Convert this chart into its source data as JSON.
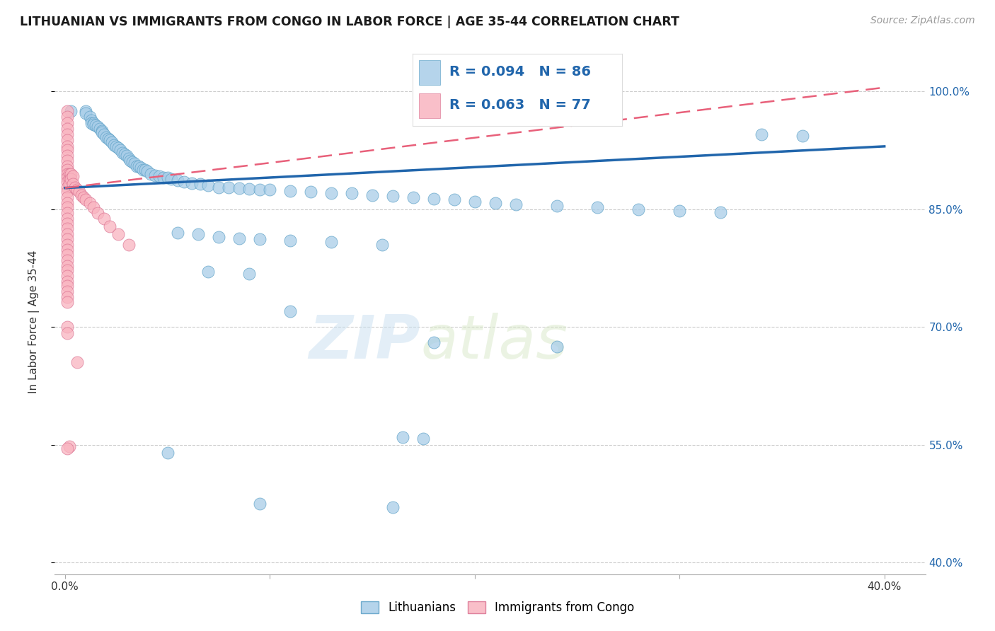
{
  "title": "LITHUANIAN VS IMMIGRANTS FROM CONGO IN LABOR FORCE | AGE 35-44 CORRELATION CHART",
  "source": "Source: ZipAtlas.com",
  "ylabel": "In Labor Force | Age 35-44",
  "xlim": [
    -0.005,
    0.42
  ],
  "ylim": [
    0.385,
    1.028
  ],
  "ytick_vals": [
    0.4,
    0.55,
    0.7,
    0.85,
    1.0
  ],
  "ytick_labels": [
    "40.0%",
    "55.0%",
    "70.0%",
    "85.0%",
    "100.0%"
  ],
  "xtick_vals": [
    0.0,
    0.1,
    0.2,
    0.3,
    0.4
  ],
  "xtick_labels": [
    "0.0%",
    "",
    "",
    "",
    "40.0%"
  ],
  "color_blue": "#a8cde8",
  "color_pink": "#f9b4c0",
  "color_blue_line": "#2166ac",
  "color_pink_line": "#e8607a",
  "legend_text_color": "#2166ac",
  "watermark_color": "#c8dff0",
  "legend_label_blue": "Lithuanians",
  "legend_label_pink": "Immigrants from Congo",
  "blue_trend_x": [
    0.0,
    0.4
  ],
  "blue_trend_y": [
    0.877,
    0.93
  ],
  "pink_trend_x": [
    0.0,
    0.4
  ],
  "pink_trend_y": [
    0.877,
    1.005
  ],
  "blue_scatter": [
    [
      0.003,
      0.975
    ],
    [
      0.01,
      0.975
    ],
    [
      0.01,
      0.972
    ],
    [
      0.012,
      0.968
    ],
    [
      0.013,
      0.963
    ],
    [
      0.013,
      0.96
    ],
    [
      0.014,
      0.96
    ],
    [
      0.014,
      0.958
    ],
    [
      0.015,
      0.957
    ],
    [
      0.016,
      0.955
    ],
    [
      0.017,
      0.952
    ],
    [
      0.018,
      0.95
    ],
    [
      0.018,
      0.948
    ],
    [
      0.019,
      0.945
    ],
    [
      0.02,
      0.942
    ],
    [
      0.021,
      0.94
    ],
    [
      0.022,
      0.938
    ],
    [
      0.023,
      0.935
    ],
    [
      0.024,
      0.932
    ],
    [
      0.025,
      0.93
    ],
    [
      0.026,
      0.928
    ],
    [
      0.027,
      0.925
    ],
    [
      0.028,
      0.922
    ],
    [
      0.029,
      0.92
    ],
    [
      0.03,
      0.918
    ],
    [
      0.031,
      0.915
    ],
    [
      0.032,
      0.912
    ],
    [
      0.033,
      0.91
    ],
    [
      0.034,
      0.908
    ],
    [
      0.035,
      0.905
    ],
    [
      0.036,
      0.905
    ],
    [
      0.037,
      0.903
    ],
    [
      0.038,
      0.9
    ],
    [
      0.039,
      0.9
    ],
    [
      0.04,
      0.898
    ],
    [
      0.042,
      0.895
    ],
    [
      0.044,
      0.893
    ],
    [
      0.046,
      0.892
    ],
    [
      0.048,
      0.89
    ],
    [
      0.05,
      0.89
    ],
    [
      0.052,
      0.888
    ],
    [
      0.055,
      0.887
    ],
    [
      0.058,
      0.885
    ],
    [
      0.062,
      0.883
    ],
    [
      0.066,
      0.882
    ],
    [
      0.07,
      0.88
    ],
    [
      0.075,
      0.878
    ],
    [
      0.08,
      0.878
    ],
    [
      0.085,
      0.877
    ],
    [
      0.09,
      0.876
    ],
    [
      0.095,
      0.875
    ],
    [
      0.1,
      0.875
    ],
    [
      0.11,
      0.873
    ],
    [
      0.12,
      0.872
    ],
    [
      0.13,
      0.87
    ],
    [
      0.14,
      0.87
    ],
    [
      0.15,
      0.868
    ],
    [
      0.16,
      0.867
    ],
    [
      0.17,
      0.865
    ],
    [
      0.18,
      0.863
    ],
    [
      0.19,
      0.862
    ],
    [
      0.2,
      0.86
    ],
    [
      0.21,
      0.858
    ],
    [
      0.22,
      0.856
    ],
    [
      0.24,
      0.854
    ],
    [
      0.26,
      0.852
    ],
    [
      0.28,
      0.85
    ],
    [
      0.3,
      0.848
    ],
    [
      0.32,
      0.846
    ],
    [
      0.34,
      0.945
    ],
    [
      0.36,
      0.943
    ],
    [
      0.055,
      0.82
    ],
    [
      0.065,
      0.818
    ],
    [
      0.075,
      0.815
    ],
    [
      0.085,
      0.813
    ],
    [
      0.095,
      0.812
    ],
    [
      0.11,
      0.81
    ],
    [
      0.13,
      0.808
    ],
    [
      0.155,
      0.805
    ],
    [
      0.07,
      0.77
    ],
    [
      0.09,
      0.768
    ],
    [
      0.11,
      0.72
    ],
    [
      0.18,
      0.68
    ],
    [
      0.24,
      0.675
    ],
    [
      0.165,
      0.56
    ],
    [
      0.175,
      0.558
    ],
    [
      0.05,
      0.54
    ],
    [
      0.095,
      0.475
    ],
    [
      0.16,
      0.47
    ]
  ],
  "pink_scatter": [
    [
      0.001,
      0.975
    ],
    [
      0.001,
      0.968
    ],
    [
      0.001,
      0.96
    ],
    [
      0.001,
      0.952
    ],
    [
      0.001,
      0.945
    ],
    [
      0.001,
      0.938
    ],
    [
      0.001,
      0.93
    ],
    [
      0.001,
      0.925
    ],
    [
      0.001,
      0.918
    ],
    [
      0.001,
      0.912
    ],
    [
      0.001,
      0.905
    ],
    [
      0.001,
      0.9
    ],
    [
      0.001,
      0.895
    ],
    [
      0.001,
      0.89
    ],
    [
      0.001,
      0.885
    ],
    [
      0.001,
      0.878
    ],
    [
      0.001,
      0.872
    ],
    [
      0.001,
      0.865
    ],
    [
      0.001,
      0.858
    ],
    [
      0.001,
      0.852
    ],
    [
      0.001,
      0.845
    ],
    [
      0.001,
      0.838
    ],
    [
      0.001,
      0.832
    ],
    [
      0.001,
      0.825
    ],
    [
      0.001,
      0.818
    ],
    [
      0.001,
      0.812
    ],
    [
      0.001,
      0.805
    ],
    [
      0.001,
      0.798
    ],
    [
      0.001,
      0.792
    ],
    [
      0.001,
      0.785
    ],
    [
      0.001,
      0.778
    ],
    [
      0.001,
      0.772
    ],
    [
      0.001,
      0.765
    ],
    [
      0.001,
      0.758
    ],
    [
      0.001,
      0.752
    ],
    [
      0.001,
      0.745
    ],
    [
      0.001,
      0.738
    ],
    [
      0.001,
      0.732
    ],
    [
      0.002,
      0.895
    ],
    [
      0.002,
      0.888
    ],
    [
      0.002,
      0.882
    ],
    [
      0.003,
      0.895
    ],
    [
      0.003,
      0.888
    ],
    [
      0.004,
      0.892
    ],
    [
      0.004,
      0.882
    ],
    [
      0.005,
      0.878
    ],
    [
      0.006,
      0.875
    ],
    [
      0.007,
      0.872
    ],
    [
      0.008,
      0.868
    ],
    [
      0.009,
      0.865
    ],
    [
      0.01,
      0.862
    ],
    [
      0.012,
      0.858
    ],
    [
      0.014,
      0.852
    ],
    [
      0.016,
      0.845
    ],
    [
      0.019,
      0.838
    ],
    [
      0.022,
      0.828
    ],
    [
      0.026,
      0.818
    ],
    [
      0.031,
      0.805
    ],
    [
      0.001,
      0.7
    ],
    [
      0.001,
      0.692
    ],
    [
      0.002,
      0.548
    ],
    [
      0.001,
      0.545
    ],
    [
      0.006,
      0.655
    ]
  ]
}
